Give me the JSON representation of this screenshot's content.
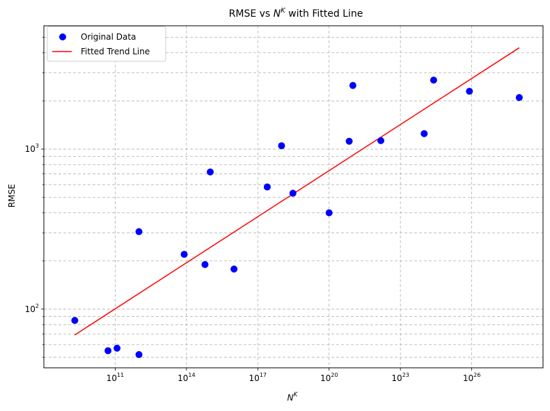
{
  "chart_data": {
    "type": "scatter",
    "title_main": "RMSE vs ",
    "title_base": "N",
    "title_sup": "K",
    "title_rest": " with Fitted Line",
    "xlabel_base": "N",
    "xlabel_sup": "K",
    "ylabel": "RMSE",
    "x_scale": "log",
    "y_scale": "log",
    "xlim": [
      100000000.0,
      1e+29
    ],
    "ylim": [
      43,
      5900
    ],
    "x_ticks": [
      {
        "value": 100000000000.0,
        "base": "10",
        "exp": "11"
      },
      {
        "value": 100000000000000.0,
        "base": "10",
        "exp": "14"
      },
      {
        "value": 1e+17,
        "base": "10",
        "exp": "17"
      },
      {
        "value": 1e+20,
        "base": "10",
        "exp": "20"
      },
      {
        "value": 1e+23,
        "base": "10",
        "exp": "23"
      },
      {
        "value": 1e+26,
        "base": "10",
        "exp": "26"
      }
    ],
    "y_ticks": [
      {
        "value": 100,
        "base": "10",
        "exp": "2"
      },
      {
        "value": 1000,
        "base": "10",
        "exp": "3"
      }
    ],
    "grid": true,
    "legend_position": "top-left",
    "series": [
      {
        "name": "Original Data",
        "kind": "scatter",
        "color": "#0000ff",
        "points": [
          {
            "x": 2000000000.0,
            "y": 85
          },
          {
            "x": 50000000000.0,
            "y": 55
          },
          {
            "x": 120000000000.0,
            "y": 57
          },
          {
            "x": 1000000000000.0,
            "y": 52
          },
          {
            "x": 1000000000000.0,
            "y": 305
          },
          {
            "x": 80000000000000.0,
            "y": 220
          },
          {
            "x": 600000000000000.0,
            "y": 190
          },
          {
            "x": 1000000000000000.0,
            "y": 720
          },
          {
            "x": 1e+16,
            "y": 178
          },
          {
            "x": 2.5e+17,
            "y": 580
          },
          {
            "x": 1e+18,
            "y": 1050
          },
          {
            "x": 3e+18,
            "y": 530
          },
          {
            "x": 1e+20,
            "y": 400
          },
          {
            "x": 7e+20,
            "y": 1120
          },
          {
            "x": 1e+21,
            "y": 2500
          },
          {
            "x": 1.5e+22,
            "y": 1130
          },
          {
            "x": 1e+24,
            "y": 1250
          },
          {
            "x": 2.5e+24,
            "y": 2700
          },
          {
            "x": 8e+25,
            "y": 2300
          },
          {
            "x": 1e+28,
            "y": 2100
          }
        ]
      },
      {
        "name": "Fitted Trend Line",
        "kind": "line",
        "color": "#ff0000",
        "points": [
          {
            "x": 2000000000.0,
            "y": 69
          },
          {
            "x": 1e+28,
            "y": 4300
          }
        ]
      }
    ]
  }
}
